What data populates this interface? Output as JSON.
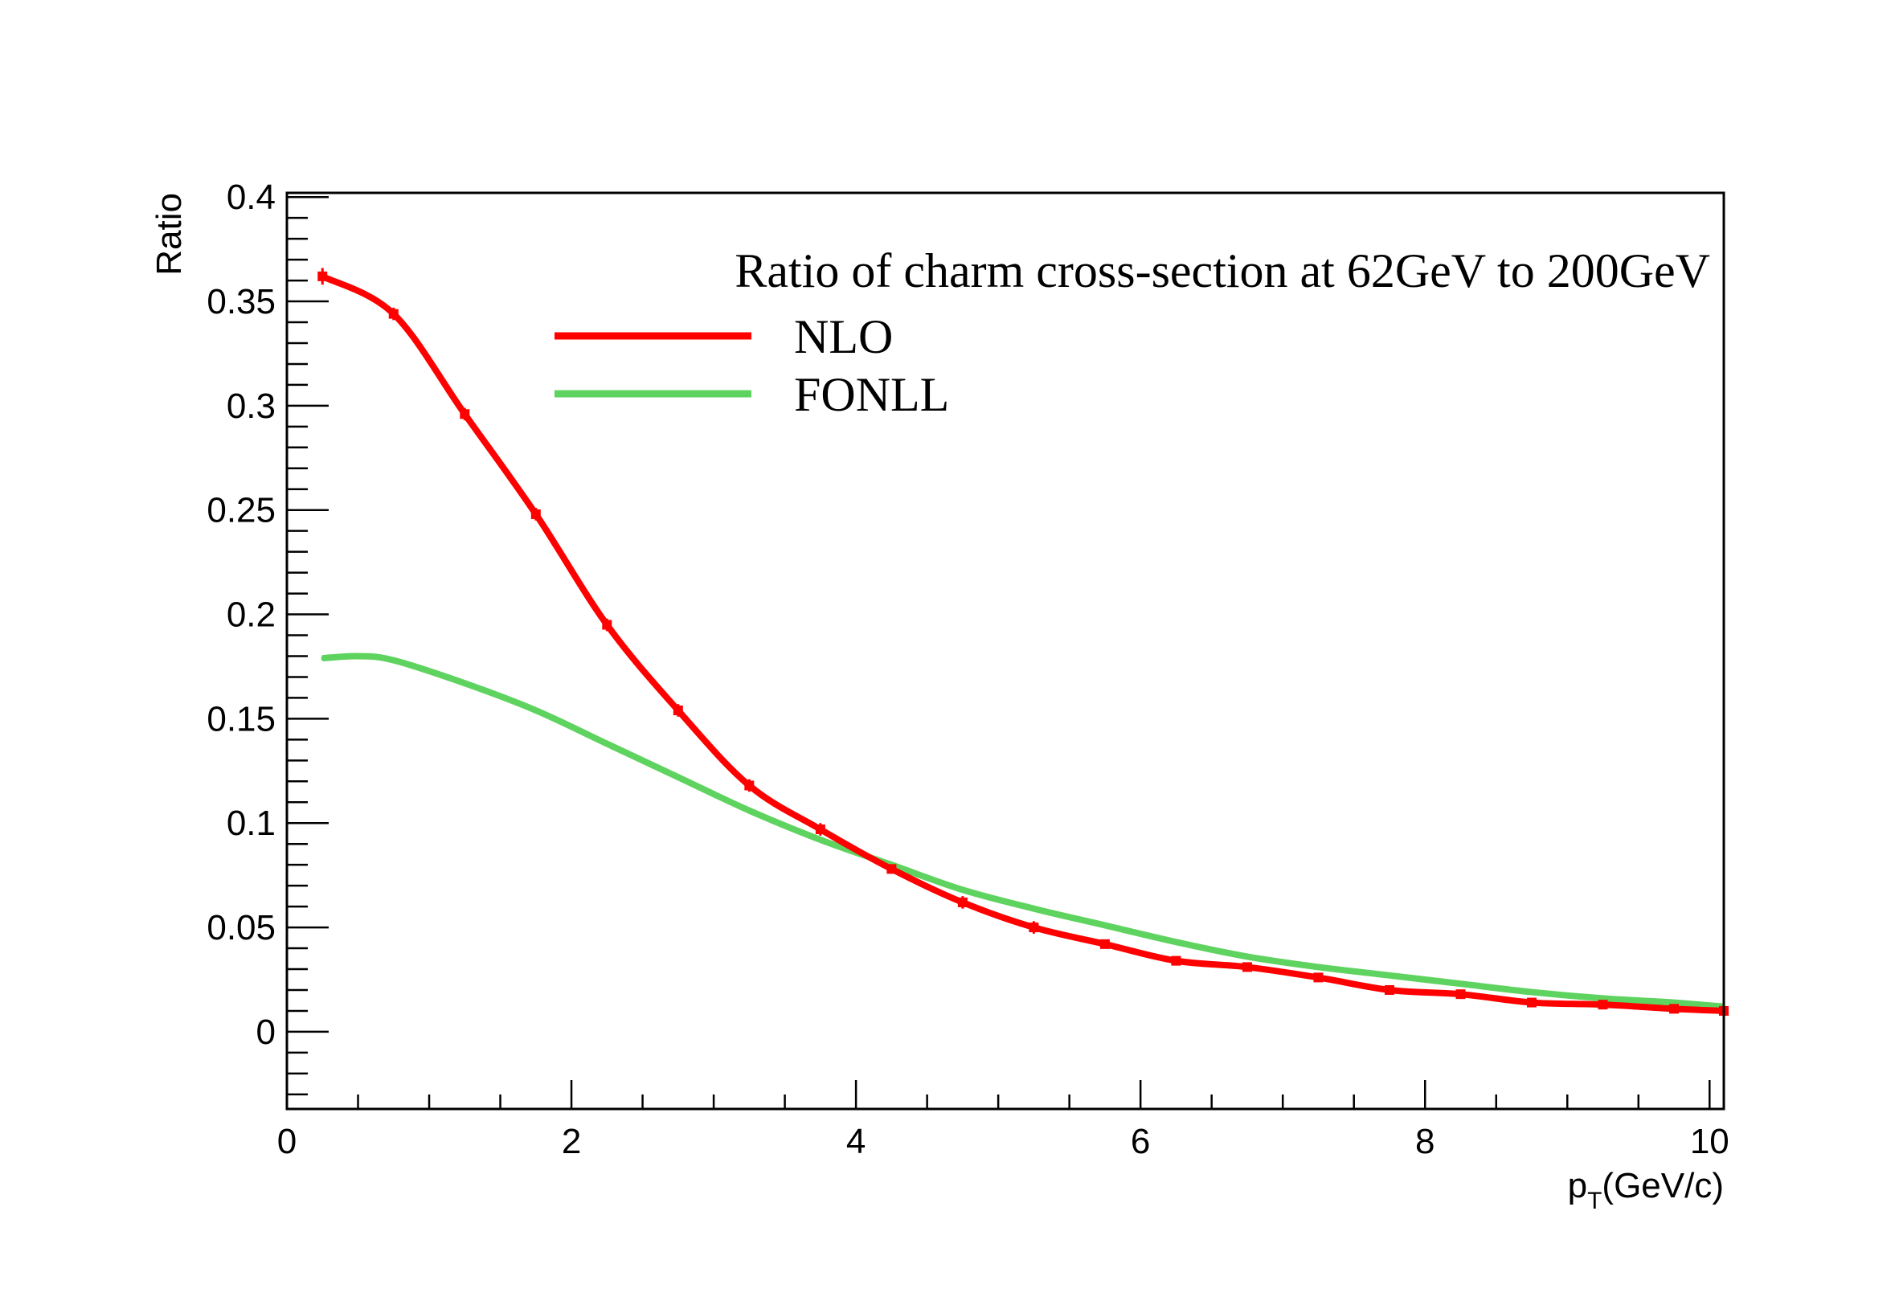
{
  "chart_data": {
    "type": "line",
    "title": "",
    "xlabel": "p_T(GeV/c)",
    "xlabel_main": "p",
    "xlabel_sub": "T",
    "xlabel_rest": "(GeV/c)",
    "ylabel": "Ratio",
    "xlim": [
      0,
      10.1
    ],
    "ylim": [
      -0.037,
      0.402
    ],
    "x_ticks": [
      0,
      2,
      4,
      6,
      8,
      10
    ],
    "x_tick_labels": [
      "0",
      "2",
      "4",
      "6",
      "8",
      "10"
    ],
    "y_ticks": [
      0,
      0.05,
      0.1,
      0.15,
      0.2,
      0.25,
      0.3,
      0.35,
      0.4
    ],
    "y_tick_labels": [
      "0",
      "0.05",
      "0.1",
      "0.15",
      "0.2",
      "0.25",
      "0.3",
      "0.35",
      "0.4"
    ],
    "grid": false,
    "legend_placement": "top-right",
    "legend_title": "Ratio of charm cross-section at 62GeV to 200GeV",
    "series": [
      {
        "name": "NLO",
        "color": "#ff0000",
        "x": [
          0.25,
          0.75,
          1.25,
          1.75,
          2.25,
          2.75,
          3.25,
          3.75,
          4.25,
          4.75,
          5.25,
          5.75,
          6.25,
          6.75,
          7.25,
          7.75,
          8.25,
          8.75,
          9.25,
          9.75,
          10.1
        ],
        "y": [
          0.362,
          0.344,
          0.296,
          0.248,
          0.195,
          0.154,
          0.118,
          0.097,
          0.078,
          0.062,
          0.05,
          0.042,
          0.034,
          0.031,
          0.026,
          0.02,
          0.018,
          0.014,
          0.013,
          0.011,
          0.01
        ],
        "err": [
          0.004,
          0.003,
          0.003,
          0.003,
          0.003,
          0.003,
          0.003,
          0.003,
          0.002,
          0.003,
          0.003,
          0.002,
          0.002,
          0.002,
          0.002,
          0.002,
          0.002,
          0.002,
          0.001,
          0.001,
          0.001
        ],
        "markers": 20
      },
      {
        "name": "FONLL",
        "color": "#5fd35f",
        "x": [
          0.25,
          0.5,
          0.75,
          1.25,
          1.75,
          2.25,
          2.75,
          3.25,
          3.75,
          4.25,
          4.75,
          5.25,
          5.75,
          6.25,
          6.75,
          7.25,
          7.75,
          8.25,
          8.75,
          9.25,
          9.75,
          10.1
        ],
        "y": [
          0.179,
          0.18,
          0.178,
          0.167,
          0.154,
          0.138,
          0.122,
          0.106,
          0.092,
          0.08,
          0.068,
          0.059,
          0.051,
          0.043,
          0.036,
          0.031,
          0.027,
          0.023,
          0.019,
          0.016,
          0.014,
          0.012
        ],
        "err": [
          0.001,
          0.001,
          0.001,
          0.001,
          0.001,
          0.001,
          0.001,
          0.001,
          0.001,
          0.001,
          0.001,
          0.001,
          0.001,
          0.001,
          0.001,
          0.001,
          0.001,
          0.001,
          0.001,
          0.001,
          0.001,
          0.001
        ],
        "markers": 0
      }
    ]
  }
}
